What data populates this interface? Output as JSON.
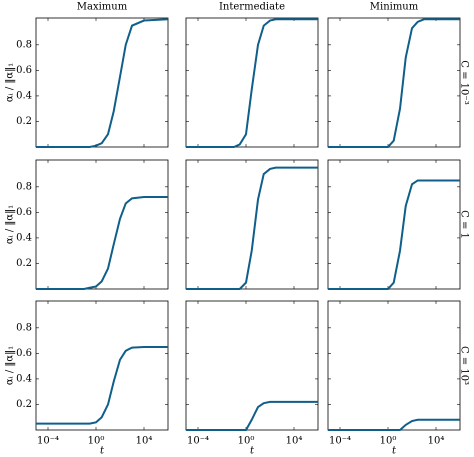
{
  "column_titles": [
    "Maximum",
    "Intermediate",
    "Minimum"
  ],
  "row_labels": [
    "C = 10⁻³",
    "C = 1",
    "C = 10³"
  ],
  "y_label": "αᵢ / ‖α‖₁",
  "x_label": "t",
  "axes": {
    "xscale": "log",
    "xlim": [
      1e-05,
      1000000
    ],
    "xticks": [
      {
        "value": 0.0001,
        "label": "10⁻⁴"
      },
      {
        "value": 1,
        "label": "10⁰"
      },
      {
        "value": 10000,
        "label": "10⁴"
      }
    ],
    "ylim": [
      0,
      1.01
    ],
    "yticks": [
      0.2,
      0.4,
      0.6,
      0.8
    ]
  },
  "chart_data": [
    {
      "type": "line",
      "color": "#0f5f8a",
      "x": [
        1e-05,
        0.0001,
        0.001,
        0.01,
        0.1,
        0.3,
        1,
        3,
        10,
        30,
        100,
        300,
        1000,
        10000,
        100000,
        1000000
      ],
      "values": [
        0,
        0,
        0,
        0,
        0,
        0,
        0.01,
        0.03,
        0.1,
        0.28,
        0.55,
        0.8,
        0.95,
        0.99,
        0.995,
        1.0
      ]
    },
    {
      "type": "line",
      "color": "#0f5f8a",
      "x": [
        1e-05,
        0.0001,
        0.001,
        0.01,
        0.1,
        0.3,
        1,
        3,
        10,
        30,
        100,
        300,
        1000,
        10000,
        100000,
        1000000
      ],
      "values": [
        0,
        0,
        0,
        0,
        0,
        0.02,
        0.1,
        0.45,
        0.8,
        0.95,
        0.99,
        1.0,
        1.0,
        1.0,
        1.0,
        1.0
      ]
    },
    {
      "type": "line",
      "color": "#0f5f8a",
      "x": [
        1e-05,
        0.0001,
        0.001,
        0.01,
        0.1,
        0.3,
        1,
        3,
        10,
        30,
        100,
        300,
        1000,
        10000,
        100000,
        1000000
      ],
      "values": [
        0,
        0,
        0,
        0,
        0,
        0,
        0,
        0.05,
        0.3,
        0.7,
        0.93,
        0.98,
        1.0,
        1.0,
        1.0,
        1.0
      ]
    },
    {
      "type": "line",
      "color": "#0f5f8a",
      "x": [
        1e-05,
        0.0001,
        0.001,
        0.01,
        0.1,
        0.3,
        1,
        3,
        10,
        30,
        100,
        300,
        1000,
        10000,
        100000,
        1000000
      ],
      "values": [
        0,
        0,
        0,
        0,
        0,
        0.01,
        0.02,
        0.06,
        0.16,
        0.35,
        0.55,
        0.67,
        0.71,
        0.72,
        0.72,
        0.72
      ]
    },
    {
      "type": "line",
      "color": "#0f5f8a",
      "x": [
        1e-05,
        0.0001,
        0.001,
        0.01,
        0.1,
        0.3,
        1,
        3,
        10,
        30,
        100,
        300,
        1000,
        10000,
        100000,
        1000000
      ],
      "values": [
        0,
        0,
        0,
        0,
        0,
        0,
        0.05,
        0.3,
        0.7,
        0.9,
        0.94,
        0.95,
        0.95,
        0.95,
        0.95,
        0.95
      ]
    },
    {
      "type": "line",
      "color": "#0f5f8a",
      "x": [
        1e-05,
        0.0001,
        0.001,
        0.01,
        0.1,
        0.3,
        1,
        3,
        10,
        30,
        100,
        300,
        1000,
        10000,
        100000,
        1000000
      ],
      "values": [
        0,
        0,
        0,
        0,
        0,
        0,
        0,
        0.05,
        0.3,
        0.65,
        0.82,
        0.85,
        0.85,
        0.85,
        0.85,
        0.85
      ]
    },
    {
      "type": "line",
      "color": "#0f5f8a",
      "x": [
        1e-05,
        0.0001,
        0.001,
        0.01,
        0.1,
        0.3,
        1,
        3,
        10,
        30,
        100,
        300,
        1000,
        10000,
        100000,
        1000000
      ],
      "values": [
        0.05,
        0.05,
        0.05,
        0.05,
        0.05,
        0.05,
        0.06,
        0.1,
        0.2,
        0.38,
        0.55,
        0.62,
        0.645,
        0.65,
        0.65,
        0.65
      ]
    },
    {
      "type": "line",
      "color": "#0f5f8a",
      "x": [
        1e-05,
        0.0001,
        0.001,
        0.01,
        0.1,
        0.3,
        1,
        3,
        10,
        30,
        100,
        300,
        1000,
        10000,
        100000,
        1000000
      ],
      "values": [
        0,
        0,
        0,
        0,
        0,
        0,
        0,
        0.08,
        0.18,
        0.21,
        0.22,
        0.22,
        0.22,
        0.22,
        0.22,
        0.22
      ]
    },
    {
      "type": "line",
      "color": "#0f5f8a",
      "x": [
        1e-05,
        0.0001,
        0.001,
        0.01,
        0.1,
        0.3,
        1,
        3,
        10,
        30,
        100,
        300,
        1000,
        10000,
        100000,
        1000000
      ],
      "values": [
        0,
        0,
        0,
        0,
        0,
        0,
        0,
        0,
        0,
        0.04,
        0.07,
        0.08,
        0.08,
        0.08,
        0.08,
        0.08
      ]
    }
  ]
}
